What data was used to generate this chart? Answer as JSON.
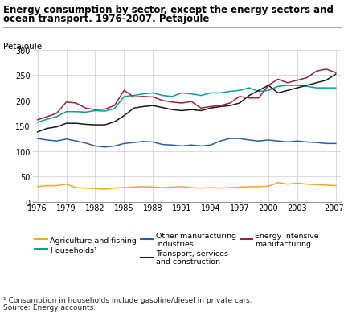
{
  "title_line1": "Energy consumption by sector, except the energy sectors and",
  "title_line2": "ocean transport. 1976-2007. Petajoule",
  "ylabel": "Petajoule",
  "years": [
    1976,
    1977,
    1978,
    1979,
    1980,
    1981,
    1982,
    1983,
    1984,
    1985,
    1986,
    1987,
    1988,
    1989,
    1990,
    1991,
    1992,
    1993,
    1994,
    1995,
    1996,
    1997,
    1998,
    1999,
    2000,
    2001,
    2002,
    2003,
    2004,
    2005,
    2006,
    2007
  ],
  "series": {
    "Agriculture and fishing": {
      "color": "#f5a623",
      "values": [
        30,
        32,
        32,
        35,
        28,
        27,
        26,
        25,
        27,
        28,
        29,
        30,
        29,
        28,
        29,
        30,
        28,
        27,
        28,
        27,
        28,
        29,
        30,
        30,
        31,
        38,
        35,
        37,
        35,
        34,
        33,
        32
      ]
    },
    "Households": {
      "color": "#00a09b",
      "values": [
        157,
        163,
        168,
        178,
        178,
        177,
        180,
        179,
        184,
        208,
        210,
        213,
        215,
        210,
        208,
        215,
        213,
        210,
        215,
        215,
        218,
        220,
        225,
        218,
        220,
        228,
        230,
        230,
        228,
        225,
        225,
        225
      ]
    },
    "Other manufacturing industries": {
      "color": "#2b5fa5",
      "values": [
        125,
        122,
        120,
        124,
        120,
        116,
        110,
        108,
        110,
        115,
        117,
        119,
        118,
        113,
        112,
        110,
        112,
        110,
        112,
        120,
        125,
        125,
        122,
        120,
        122,
        120,
        118,
        120,
        118,
        117,
        115,
        115
      ]
    },
    "Transport, services and construction": {
      "color": "#1a1a1a",
      "values": [
        138,
        145,
        148,
        155,
        155,
        153,
        152,
        152,
        158,
        170,
        185,
        188,
        190,
        186,
        182,
        180,
        182,
        180,
        185,
        188,
        190,
        195,
        210,
        220,
        230,
        215,
        220,
        225,
        230,
        235,
        240,
        252
      ]
    },
    "Energy intensive manufacturing": {
      "color": "#9b2335",
      "values": [
        162,
        168,
        175,
        197,
        195,
        185,
        182,
        183,
        190,
        220,
        207,
        208,
        207,
        200,
        197,
        195,
        198,
        185,
        188,
        190,
        195,
        208,
        205,
        205,
        230,
        242,
        235,
        240,
        245,
        258,
        262,
        255
      ]
    }
  },
  "xticks": [
    1976,
    1979,
    1982,
    1985,
    1988,
    1991,
    1994,
    1997,
    2000,
    2003,
    2007
  ],
  "xlim": [
    1975.5,
    2007.5
  ],
  "ylim": [
    0,
    300
  ],
  "yticks": [
    0,
    50,
    100,
    150,
    200,
    250,
    300
  ],
  "footnote1": "¹ Consumption in households include gasoline/diesel in private cars.",
  "footnote2": "Source: Energy accounts.",
  "last_tick_label": "2007*",
  "background_color": "#ffffff",
  "grid_color": "#cccccc",
  "legend_order": [
    "Agriculture and fishing",
    "Households¹",
    "Other manufacturing\nindustries",
    "Transport, services\nand construction",
    "Energy intensive\nmanufacturing"
  ],
  "legend_series_keys": [
    "Agriculture and fishing",
    "Households",
    "Other manufacturing industries",
    "Transport, services and construction",
    "Energy intensive manufacturing"
  ]
}
